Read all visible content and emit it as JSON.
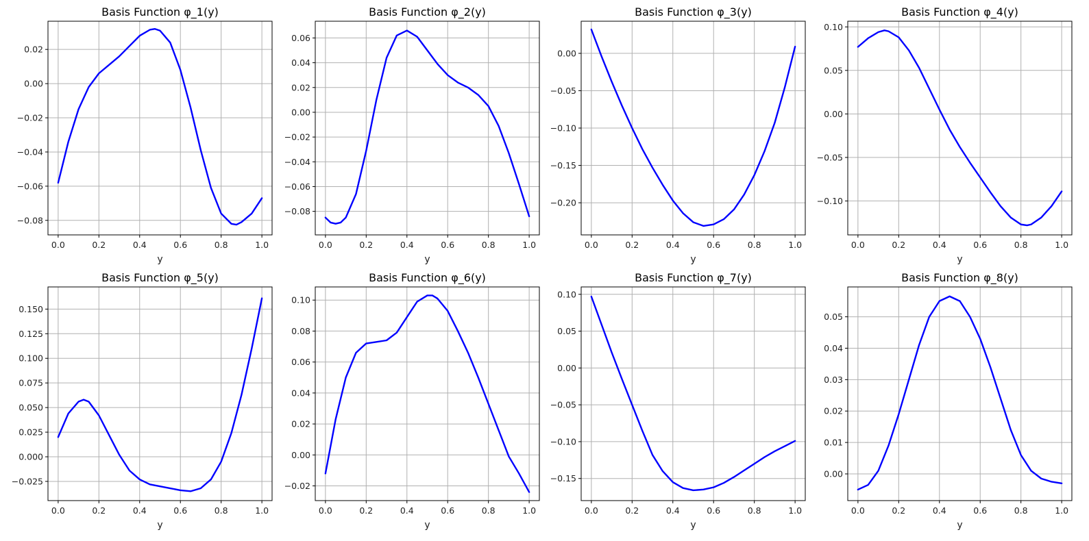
{
  "chart_data": [
    {
      "type": "line",
      "title": "Basis Function φ_1(y)",
      "xlabel": "y",
      "xlim": [
        -0.05,
        1.05
      ],
      "ylim": [
        -0.0885,
        0.0365
      ],
      "xticks": [
        "0.0",
        "0.2",
        "0.4",
        "0.6",
        "0.8",
        "1.0"
      ],
      "yticks": [
        "−0.08",
        "−0.06",
        "−0.04",
        "−0.02",
        "0.00",
        "0.02"
      ],
      "ytick_values": [
        -0.08,
        -0.06,
        -0.04,
        -0.02,
        0.0,
        0.02
      ],
      "grid": true,
      "color": "#0000ff",
      "x": [
        0.0,
        0.05,
        0.1,
        0.15,
        0.2,
        0.25,
        0.3,
        0.35,
        0.4,
        0.45,
        0.475,
        0.5,
        0.55,
        0.6,
        0.65,
        0.7,
        0.75,
        0.8,
        0.85,
        0.875,
        0.9,
        0.95,
        1.0
      ],
      "y": [
        -0.058,
        -0.034,
        -0.015,
        -0.002,
        0.006,
        0.011,
        0.016,
        0.022,
        0.028,
        0.0315,
        0.032,
        0.031,
        0.024,
        0.008,
        -0.014,
        -0.039,
        -0.061,
        -0.076,
        -0.082,
        -0.0825,
        -0.081,
        -0.076,
        -0.067
      ]
    },
    {
      "type": "line",
      "title": "Basis Function φ_2(y)",
      "xlabel": "y",
      "xlim": [
        -0.05,
        1.05
      ],
      "ylim": [
        -0.099,
        0.0735
      ],
      "xticks": [
        "0.0",
        "0.2",
        "0.4",
        "0.6",
        "0.8",
        "1.0"
      ],
      "yticks": [
        "−0.08",
        "−0.06",
        "−0.04",
        "−0.02",
        "0.00",
        "0.02",
        "0.04",
        "0.06"
      ],
      "ytick_values": [
        -0.08,
        -0.06,
        -0.04,
        -0.02,
        0.0,
        0.02,
        0.04,
        0.06
      ],
      "grid": true,
      "color": "#0000ff",
      "x": [
        0.0,
        0.025,
        0.05,
        0.075,
        0.1,
        0.15,
        0.2,
        0.25,
        0.3,
        0.35,
        0.4,
        0.45,
        0.5,
        0.55,
        0.6,
        0.65,
        0.7,
        0.75,
        0.8,
        0.85,
        0.9,
        0.95,
        1.0
      ],
      "y": [
        -0.085,
        -0.089,
        -0.09,
        -0.089,
        -0.085,
        -0.066,
        -0.031,
        0.01,
        0.044,
        0.062,
        0.066,
        0.061,
        0.05,
        0.039,
        0.03,
        0.024,
        0.02,
        0.014,
        0.005,
        -0.011,
        -0.033,
        -0.058,
        -0.084
      ]
    },
    {
      "type": "line",
      "title": "Basis Function φ_3(y)",
      "xlabel": "y",
      "xlim": [
        -0.05,
        1.05
      ],
      "ylim": [
        -0.243,
        0.043
      ],
      "xticks": [
        "0.0",
        "0.2",
        "0.4",
        "0.6",
        "0.8",
        "1.0"
      ],
      "yticks": [
        "−0.20",
        "−0.15",
        "−0.10",
        "−0.05",
        "0.00"
      ],
      "ytick_values": [
        -0.2,
        -0.15,
        -0.1,
        -0.05,
        0.0
      ],
      "grid": true,
      "color": "#0000ff",
      "x": [
        0.0,
        0.05,
        0.1,
        0.15,
        0.2,
        0.25,
        0.3,
        0.35,
        0.4,
        0.45,
        0.5,
        0.55,
        0.6,
        0.65,
        0.7,
        0.75,
        0.8,
        0.85,
        0.9,
        0.95,
        1.0
      ],
      "y": [
        0.032,
        -0.004,
        -0.038,
        -0.07,
        -0.1,
        -0.128,
        -0.153,
        -0.176,
        -0.197,
        -0.214,
        -0.226,
        -0.231,
        -0.229,
        -0.222,
        -0.209,
        -0.189,
        -0.163,
        -0.131,
        -0.093,
        -0.045,
        0.009
      ]
    },
    {
      "type": "line",
      "title": "Basis Function φ_4(y)",
      "xlabel": "y",
      "xlim": [
        -0.05,
        1.05
      ],
      "ylim": [
        -0.139,
        0.1065
      ],
      "xticks": [
        "0.0",
        "0.2",
        "0.4",
        "0.6",
        "0.8",
        "1.0"
      ],
      "yticks": [
        "−0.10",
        "−0.05",
        "0.00",
        "0.05",
        "0.10"
      ],
      "ytick_values": [
        -0.1,
        -0.05,
        0.0,
        0.05,
        0.1
      ],
      "grid": true,
      "color": "#0000ff",
      "x": [
        0.0,
        0.05,
        0.1,
        0.13,
        0.15,
        0.2,
        0.25,
        0.3,
        0.35,
        0.4,
        0.45,
        0.5,
        0.55,
        0.6,
        0.65,
        0.7,
        0.75,
        0.8,
        0.83,
        0.85,
        0.9,
        0.95,
        1.0
      ],
      "y": [
        0.077,
        0.087,
        0.094,
        0.096,
        0.095,
        0.088,
        0.073,
        0.053,
        0.029,
        0.005,
        -0.018,
        -0.038,
        -0.056,
        -0.073,
        -0.09,
        -0.106,
        -0.119,
        -0.127,
        -0.128,
        -0.127,
        -0.119,
        -0.106,
        -0.089
      ]
    },
    {
      "type": "line",
      "title": "Basis Function φ_5(y)",
      "xlabel": "y",
      "xlim": [
        -0.05,
        1.05
      ],
      "ylim": [
        -0.0445,
        0.1725
      ],
      "xticks": [
        "0.0",
        "0.2",
        "0.4",
        "0.6",
        "0.8",
        "1.0"
      ],
      "yticks": [
        "−0.025",
        "0.000",
        "0.025",
        "0.050",
        "0.075",
        "0.100",
        "0.125",
        "0.150"
      ],
      "ytick_values": [
        -0.025,
        0.0,
        0.025,
        0.05,
        0.075,
        0.1,
        0.125,
        0.15
      ],
      "grid": true,
      "color": "#0000ff",
      "x": [
        0.0,
        0.05,
        0.1,
        0.125,
        0.15,
        0.2,
        0.25,
        0.3,
        0.35,
        0.4,
        0.45,
        0.5,
        0.55,
        0.6,
        0.65,
        0.7,
        0.75,
        0.8,
        0.85,
        0.9,
        0.95,
        1.0
      ],
      "y": [
        0.02,
        0.044,
        0.056,
        0.058,
        0.056,
        0.042,
        0.022,
        0.002,
        -0.014,
        -0.023,
        -0.028,
        -0.03,
        -0.032,
        -0.034,
        -0.035,
        -0.032,
        -0.023,
        -0.005,
        0.024,
        0.063,
        0.11,
        0.161
      ]
    },
    {
      "type": "line",
      "title": "Basis Function φ_6(y)",
      "xlabel": "y",
      "xlim": [
        -0.05,
        1.05
      ],
      "ylim": [
        -0.0295,
        0.1085
      ],
      "xticks": [
        "0.0",
        "0.2",
        "0.4",
        "0.6",
        "0.8",
        "1.0"
      ],
      "yticks": [
        "−0.02",
        "0.00",
        "0.02",
        "0.04",
        "0.06",
        "0.08",
        "0.10"
      ],
      "ytick_values": [
        -0.02,
        0.0,
        0.02,
        0.04,
        0.06,
        0.08,
        0.1
      ],
      "grid": true,
      "color": "#0000ff",
      "x": [
        0.0,
        0.05,
        0.1,
        0.15,
        0.2,
        0.25,
        0.3,
        0.35,
        0.4,
        0.45,
        0.5,
        0.525,
        0.55,
        0.6,
        0.65,
        0.7,
        0.75,
        0.8,
        0.85,
        0.9,
        0.95,
        1.0
      ],
      "y": [
        -0.012,
        0.023,
        0.05,
        0.066,
        0.072,
        0.073,
        0.074,
        0.079,
        0.089,
        0.099,
        0.103,
        0.103,
        0.101,
        0.093,
        0.08,
        0.066,
        0.05,
        0.033,
        0.016,
        -0.001,
        -0.012,
        -0.024
      ]
    },
    {
      "type": "line",
      "title": "Basis Function φ_7(y)",
      "xlabel": "y",
      "xlim": [
        -0.05,
        1.05
      ],
      "ylim": [
        -0.18,
        0.11
      ],
      "xticks": [
        "0.0",
        "0.2",
        "0.4",
        "0.6",
        "0.8",
        "1.0"
      ],
      "yticks": [
        "−0.15",
        "−0.10",
        "−0.05",
        "0.00",
        "0.05",
        "0.10"
      ],
      "ytick_values": [
        -0.15,
        -0.1,
        -0.05,
        0.0,
        0.05,
        0.1
      ],
      "grid": true,
      "color": "#0000ff",
      "x": [
        0.0,
        0.05,
        0.1,
        0.15,
        0.2,
        0.25,
        0.3,
        0.35,
        0.4,
        0.45,
        0.5,
        0.55,
        0.6,
        0.65,
        0.7,
        0.75,
        0.8,
        0.85,
        0.9,
        0.95,
        1.0
      ],
      "y": [
        0.097,
        0.059,
        0.021,
        -0.015,
        -0.05,
        -0.085,
        -0.118,
        -0.14,
        -0.155,
        -0.163,
        -0.166,
        -0.165,
        -0.162,
        -0.156,
        -0.148,
        -0.139,
        -0.13,
        -0.121,
        -0.113,
        -0.106,
        -0.099
      ]
    },
    {
      "type": "line",
      "title": "Basis Function φ_8(y)",
      "xlabel": "y",
      "xlim": [
        -0.05,
        1.05
      ],
      "ylim": [
        -0.0085,
        0.0595
      ],
      "xticks": [
        "0.0",
        "0.2",
        "0.4",
        "0.6",
        "0.8",
        "1.0"
      ],
      "yticks": [
        "0.00",
        "0.01",
        "0.02",
        "0.03",
        "0.04",
        "0.05"
      ],
      "ytick_values": [
        0.0,
        0.01,
        0.02,
        0.03,
        0.04,
        0.05
      ],
      "grid": true,
      "color": "#0000ff",
      "x": [
        0.0,
        0.05,
        0.1,
        0.15,
        0.2,
        0.25,
        0.3,
        0.35,
        0.4,
        0.45,
        0.5,
        0.55,
        0.6,
        0.65,
        0.7,
        0.75,
        0.8,
        0.85,
        0.9,
        0.95,
        1.0
      ],
      "y": [
        -0.005,
        -0.0035,
        0.001,
        0.009,
        0.019,
        0.03,
        0.041,
        0.05,
        0.055,
        0.0565,
        0.055,
        0.05,
        0.043,
        0.034,
        0.024,
        0.014,
        0.006,
        0.001,
        -0.0015,
        -0.0025,
        -0.003
      ]
    }
  ]
}
